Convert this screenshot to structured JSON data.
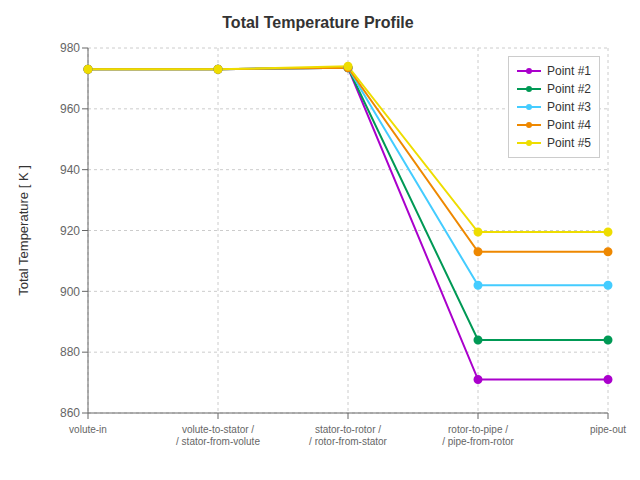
{
  "chart_data": {
    "type": "line",
    "title": "Total Temperature Profile",
    "ylabel": "Total Temperature [ K ]",
    "categories": [
      "volute-in",
      "volute-to-stator /\n/ stator-from-volute",
      "stator-to-rotor /\n/ rotor-from-stator",
      "rotor-to-pipe /\n/ pipe-from-rotor",
      "pipe-out"
    ],
    "series": [
      {
        "name": "Point #1",
        "color": "#aa00cc",
        "values": [
          973.0,
          973.0,
          973.5,
          871.0,
          871.0
        ]
      },
      {
        "name": "Point #2",
        "color": "#009955",
        "values": [
          973.0,
          973.0,
          973.5,
          884.0,
          884.0
        ]
      },
      {
        "name": "Point #3",
        "color": "#44ccff",
        "values": [
          973.0,
          973.0,
          973.5,
          902.0,
          902.0
        ]
      },
      {
        "name": "Point #4",
        "color": "#ee8800",
        "values": [
          973.0,
          973.0,
          973.5,
          913.0,
          913.0
        ]
      },
      {
        "name": "Point #5",
        "color": "#eedd00",
        "values": [
          973.0,
          973.0,
          974.0,
          919.5,
          919.5
        ]
      }
    ],
    "ylim": [
      860,
      980
    ],
    "yticks": [
      860,
      880,
      900,
      920,
      940,
      960,
      980
    ],
    "grid": true,
    "legend": "upper right",
    "marker": "circle"
  }
}
